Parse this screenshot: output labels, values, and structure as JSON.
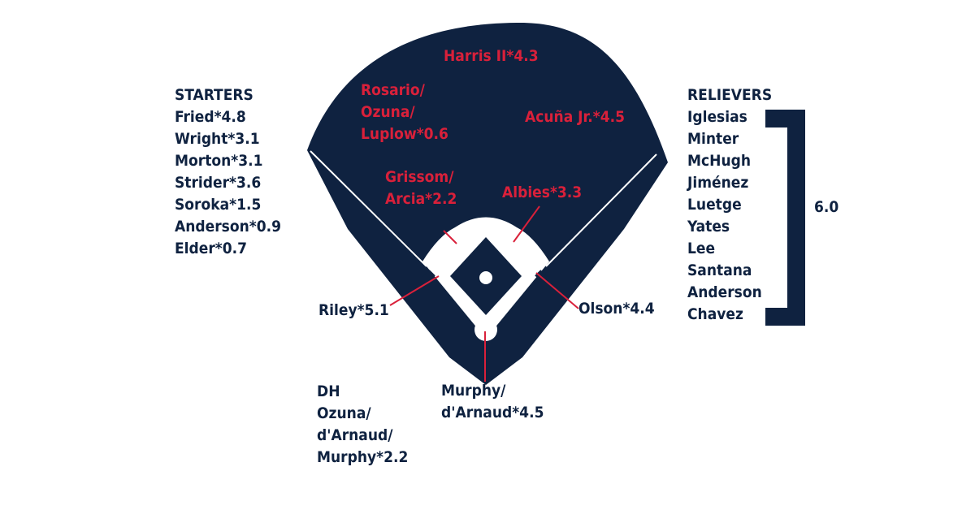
{
  "colors": {
    "navy": "#0f2240",
    "red": "#d9203a",
    "white": "#ffffff"
  },
  "field": {
    "center_field": "Harris II*4.3",
    "left_field": [
      "Rosario/",
      "Ozuna/",
      "Luplow*0.6"
    ],
    "right_field": "Acuña Jr.*4.5",
    "shortstop": [
      "Grissom/",
      "Arcia*2.2"
    ],
    "second_base": "Albies*3.3",
    "third_base": "Riley*5.1",
    "first_base": "Olson*4.4",
    "catcher": [
      "Murphy/",
      "d'Arnaud*4.5"
    ]
  },
  "dh": {
    "heading": "DH",
    "lines": [
      "Ozuna/",
      "d'Arnaud/",
      "Murphy*2.2"
    ]
  },
  "starters": {
    "heading": "STARTERS",
    "items": [
      "Fried*4.8",
      "Wright*3.1",
      "Morton*3.1",
      "Strider*3.6",
      "Soroka*1.5",
      "Anderson*0.9",
      "Elder*0.7"
    ]
  },
  "relievers": {
    "heading": "RELIEVERS",
    "items": [
      "Iglesias",
      "Minter",
      "McHugh",
      "Jiménez",
      "Luetge",
      "Yates",
      "Lee",
      "Santana",
      "Anderson",
      "Chavez"
    ],
    "group_value": "6.0"
  }
}
